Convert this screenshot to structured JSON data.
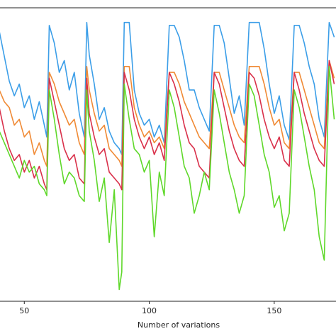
{
  "chart_data": {
    "type": "line",
    "title": "",
    "xlabel": "Number of variations",
    "ylabel": "",
    "xlim": [
      40,
      175
    ],
    "ylim": [
      0,
      1
    ],
    "x_ticks": [
      50,
      100,
      150
    ],
    "grid": false,
    "legend": "none",
    "series_colors": [
      "#3b9ee8",
      "#f08a35",
      "#d9304a",
      "#5fd82a"
    ],
    "series": [
      {
        "color": "#3b9ee8",
        "x": [
          40,
          44,
          46,
          48,
          50,
          52,
          54,
          56,
          58,
          59,
          60,
          62,
          64,
          66,
          68,
          70,
          72,
          74,
          75,
          76,
          78,
          80,
          82,
          84,
          86,
          88,
          89,
          90,
          92,
          94,
          96,
          98,
          100,
          102,
          104,
          106,
          108,
          110,
          112,
          114,
          116,
          118,
          120,
          122,
          124,
          126,
          128,
          130,
          132,
          134,
          136,
          138,
          140,
          142,
          144,
          146,
          148,
          150,
          152,
          154,
          156,
          158,
          160,
          162,
          164,
          166,
          168,
          170,
          172,
          174
        ],
        "y": [
          0.92,
          0.75,
          0.7,
          0.74,
          0.66,
          0.7,
          0.62,
          0.68,
          0.6,
          0.56,
          0.94,
          0.88,
          0.78,
          0.82,
          0.72,
          0.78,
          0.64,
          0.56,
          0.95,
          0.84,
          0.74,
          0.62,
          0.66,
          0.58,
          0.54,
          0.52,
          0.5,
          0.95,
          0.95,
          0.72,
          0.64,
          0.6,
          0.62,
          0.56,
          0.6,
          0.54,
          0.94,
          0.94,
          0.9,
          0.82,
          0.72,
          0.72,
          0.66,
          0.62,
          0.58,
          0.94,
          0.94,
          0.88,
          0.76,
          0.64,
          0.7,
          0.6,
          0.95,
          0.95,
          0.95,
          0.86,
          0.74,
          0.64,
          0.7,
          0.6,
          0.55,
          0.94,
          0.94,
          0.88,
          0.8,
          0.74,
          0.62,
          0.56,
          0.95,
          0.9
        ]
      },
      {
        "color": "#f08a35",
        "x": [
          40,
          42,
          44,
          46,
          48,
          50,
          52,
          54,
          56,
          58,
          59,
          60,
          62,
          64,
          66,
          68,
          70,
          72,
          74,
          75,
          76,
          78,
          80,
          82,
          84,
          86,
          88,
          89,
          90,
          92,
          94,
          96,
          98,
          100,
          102,
          104,
          106,
          108,
          110,
          112,
          114,
          116,
          118,
          120,
          122,
          124,
          126,
          128,
          130,
          132,
          134,
          136,
          138,
          140,
          142,
          144,
          146,
          148,
          150,
          152,
          154,
          156,
          158,
          160,
          162,
          164,
          166,
          168,
          170,
          172,
          174
        ],
        "y": [
          0.72,
          0.68,
          0.66,
          0.6,
          0.62,
          0.56,
          0.58,
          0.5,
          0.54,
          0.48,
          0.46,
          0.78,
          0.74,
          0.68,
          0.64,
          0.6,
          0.62,
          0.54,
          0.5,
          0.8,
          0.72,
          0.64,
          0.58,
          0.6,
          0.52,
          0.5,
          0.48,
          0.46,
          0.8,
          0.8,
          0.66,
          0.6,
          0.56,
          0.58,
          0.54,
          0.56,
          0.52,
          0.78,
          0.78,
          0.74,
          0.68,
          0.64,
          0.6,
          0.56,
          0.54,
          0.52,
          0.78,
          0.78,
          0.72,
          0.66,
          0.6,
          0.56,
          0.54,
          0.8,
          0.8,
          0.8,
          0.74,
          0.66,
          0.6,
          0.62,
          0.54,
          0.52,
          0.78,
          0.78,
          0.72,
          0.66,
          0.6,
          0.54,
          0.52,
          0.82,
          0.76
        ]
      },
      {
        "color": "#d9304a",
        "x": [
          40,
          42,
          44,
          46,
          48,
          50,
          52,
          54,
          56,
          58,
          59,
          60,
          62,
          64,
          66,
          68,
          70,
          72,
          74,
          75,
          76,
          78,
          80,
          82,
          84,
          86,
          88,
          89,
          90,
          92,
          94,
          96,
          98,
          100,
          102,
          104,
          106,
          108,
          110,
          112,
          114,
          116,
          118,
          120,
          122,
          124,
          126,
          128,
          130,
          132,
          134,
          136,
          138,
          140,
          142,
          144,
          146,
          148,
          150,
          152,
          154,
          156,
          158,
          160,
          162,
          164,
          166,
          168,
          170,
          172,
          174
        ],
        "y": [
          0.66,
          0.58,
          0.52,
          0.48,
          0.5,
          0.44,
          0.48,
          0.42,
          0.46,
          0.4,
          0.38,
          0.76,
          0.68,
          0.6,
          0.52,
          0.48,
          0.5,
          0.42,
          0.4,
          0.76,
          0.64,
          0.56,
          0.5,
          0.52,
          0.44,
          0.42,
          0.4,
          0.38,
          0.78,
          0.72,
          0.62,
          0.56,
          0.52,
          0.56,
          0.5,
          0.54,
          0.48,
          0.78,
          0.74,
          0.68,
          0.6,
          0.54,
          0.52,
          0.46,
          0.44,
          0.42,
          0.78,
          0.74,
          0.66,
          0.58,
          0.52,
          0.48,
          0.46,
          0.78,
          0.76,
          0.7,
          0.62,
          0.56,
          0.52,
          0.56,
          0.48,
          0.46,
          0.78,
          0.72,
          0.64,
          0.58,
          0.52,
          0.48,
          0.46,
          0.82,
          0.74
        ]
      },
      {
        "color": "#5fd82a",
        "x": [
          40,
          42,
          44,
          46,
          48,
          50,
          52,
          54,
          56,
          58,
          59,
          60,
          62,
          64,
          66,
          68,
          70,
          72,
          74,
          75,
          76,
          78,
          80,
          82,
          84,
          86,
          88,
          89,
          90,
          92,
          94,
          96,
          98,
          100,
          102,
          104,
          106,
          108,
          110,
          112,
          114,
          116,
          118,
          120,
          122,
          124,
          126,
          128,
          130,
          132,
          134,
          136,
          138,
          140,
          142,
          144,
          146,
          148,
          150,
          152,
          154,
          156,
          158,
          160,
          162,
          164,
          166,
          168,
          170,
          172,
          174
        ],
        "y": [
          0.58,
          0.54,
          0.5,
          0.46,
          0.42,
          0.48,
          0.44,
          0.46,
          0.4,
          0.38,
          0.36,
          0.72,
          0.62,
          0.5,
          0.4,
          0.44,
          0.42,
          0.36,
          0.34,
          0.72,
          0.58,
          0.48,
          0.34,
          0.42,
          0.2,
          0.38,
          0.04,
          0.1,
          0.74,
          0.62,
          0.52,
          0.5,
          0.44,
          0.48,
          0.22,
          0.44,
          0.36,
          0.72,
          0.66,
          0.56,
          0.46,
          0.42,
          0.3,
          0.36,
          0.44,
          0.38,
          0.72,
          0.64,
          0.54,
          0.44,
          0.38,
          0.3,
          0.36,
          0.74,
          0.7,
          0.6,
          0.5,
          0.44,
          0.32,
          0.36,
          0.24,
          0.3,
          0.72,
          0.66,
          0.56,
          0.46,
          0.38,
          0.22,
          0.14,
          0.8,
          0.62
        ]
      }
    ]
  }
}
